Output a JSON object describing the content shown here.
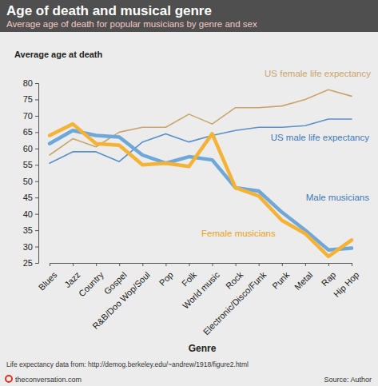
{
  "chart_data": {
    "type": "line",
    "title": "Age of death and musical genre",
    "subtitle": "Average age of death for popular musicians by genre and sex",
    "y_label": "Average age at death",
    "x_label": "Genre",
    "footnote": "Life expectancy data from: http://demog.berkeley.edu/~andrew/1918/figure2.html",
    "publisher": "theconversation.com",
    "source": "Source: Author",
    "categories": [
      "Blues",
      "Jazz",
      "Country",
      "Gospel",
      "R&B/Doo Wop/Soul",
      "Pop",
      "Folk",
      "World music",
      "Rock",
      "Electronic/Disco/Funk",
      "Punk",
      "Metal",
      "Rap",
      "Hip Hop"
    ],
    "ylim": [
      25,
      80
    ],
    "yticks": [
      25,
      30,
      35,
      40,
      45,
      50,
      55,
      60,
      65,
      70,
      75,
      80
    ],
    "series": [
      {
        "name": "US female life expectancy",
        "color": "#c9a56c",
        "values": [
          58,
          63,
          60.5,
          65,
          66.5,
          66.5,
          70.5,
          67.5,
          72.5,
          72.5,
          73,
          75,
          78,
          76
        ]
      },
      {
        "name": "US male life expectancy",
        "color": "#5b8fc9",
        "values": [
          55.5,
          59,
          59,
          56,
          62,
          64.5,
          62,
          64,
          65.5,
          66.5,
          66.5,
          67,
          69,
          69
        ]
      },
      {
        "name": "Male musicians",
        "color": "#6fa8d8",
        "values": [
          61.5,
          65.5,
          64,
          63.5,
          58,
          55.5,
          57.5,
          56.5,
          48,
          47,
          40.5,
          35,
          29,
          29.5
        ]
      },
      {
        "name": "Female musicians",
        "color": "#f4b336",
        "values": [
          64,
          67.5,
          61.5,
          61,
          55,
          55.5,
          54.5,
          64.5,
          48,
          45.5,
          38,
          34,
          27,
          32
        ]
      }
    ]
  }
}
